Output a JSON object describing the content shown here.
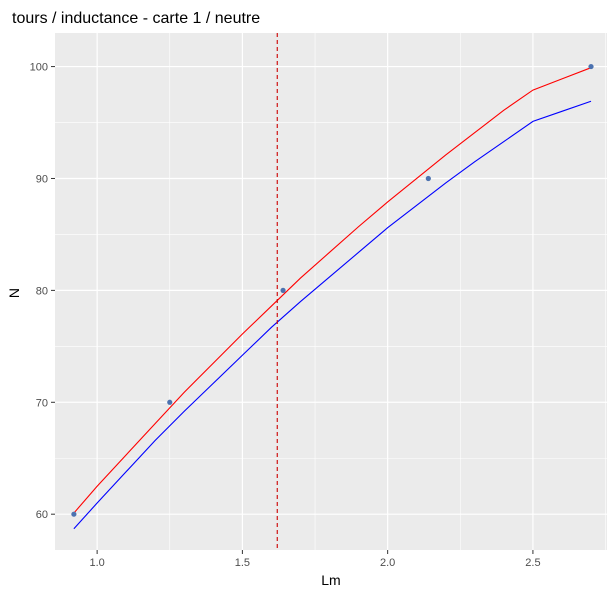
{
  "chart_data": {
    "type": "line",
    "title": "tours / inductance - carte 1 / neutre",
    "xlabel": "Lm",
    "ylabel": "N",
    "xlim": [
      0.855,
      2.755
    ],
    "ylim": [
      56.8,
      103.0
    ],
    "x_ticks": [
      1.0,
      1.5,
      2.0,
      2.5
    ],
    "y_ticks": [
      60,
      70,
      80,
      90,
      100
    ],
    "x_tick_labels": [
      "1.0",
      "1.5",
      "2.0",
      "2.5"
    ],
    "y_tick_labels": [
      "60",
      "70",
      "80",
      "90",
      "100"
    ],
    "grid": true,
    "background": "#ebebeb",
    "points": {
      "x": [
        0.92,
        1.25,
        1.64,
        2.14,
        2.7
      ],
      "y": [
        60,
        70,
        80,
        90,
        100
      ],
      "color": "#4c72b0"
    },
    "series": [
      {
        "color": "#ff0000",
        "x": [
          0.92,
          1.0,
          1.1,
          1.2,
          1.3,
          1.4,
          1.5,
          1.6,
          1.7,
          1.8,
          1.9,
          2.0,
          2.1,
          2.2,
          2.3,
          2.4,
          2.5,
          2.6,
          2.7
        ],
        "y": [
          60.1,
          62.5,
          65.3,
          68.1,
          70.9,
          73.5,
          76.1,
          78.6,
          81.1,
          83.4,
          85.7,
          87.9,
          90.0,
          92.1,
          94.1,
          96.1,
          97.9,
          98.9,
          99.9
        ]
      },
      {
        "color": "#0000ff",
        "x": [
          0.92,
          1.0,
          1.1,
          1.2,
          1.3,
          1.4,
          1.5,
          1.6,
          1.7,
          1.8,
          1.9,
          2.0,
          2.1,
          2.2,
          2.3,
          2.4,
          2.5,
          2.6,
          2.7
        ],
        "y": [
          58.7,
          61.0,
          63.8,
          66.6,
          69.2,
          71.7,
          74.2,
          76.7,
          79.0,
          81.2,
          83.4,
          85.6,
          87.6,
          89.6,
          91.5,
          93.3,
          95.1,
          96.0,
          96.9
        ]
      }
    ],
    "vline": {
      "x": 1.62,
      "color": "#cc0000",
      "style": "dashed"
    }
  }
}
